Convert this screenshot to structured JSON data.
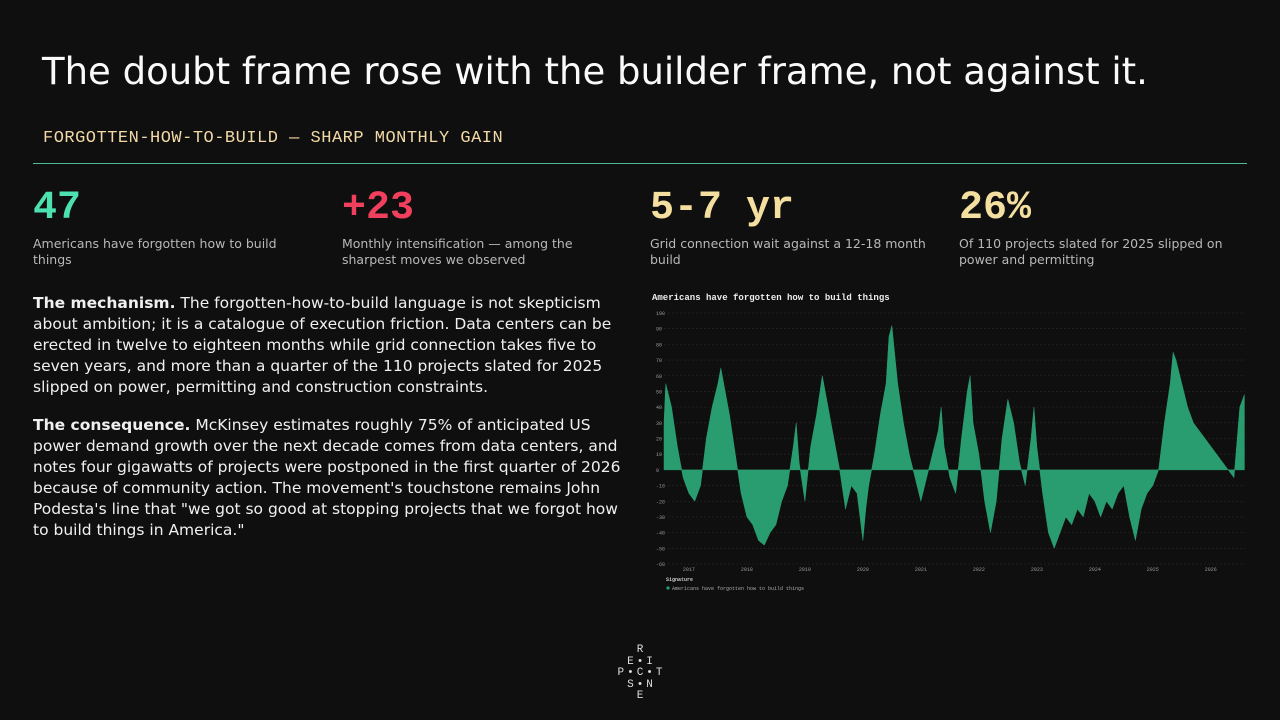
{
  "title": "The doubt frame rose with the builder frame, not against it.",
  "subtitle": "FORGOTTEN-HOW-TO-BUILD — SHARP MONTHLY GAIN",
  "stats": [
    {
      "value": "47",
      "caption": "Americans have forgotten how to build things"
    },
    {
      "value": "+23",
      "caption": "Monthly intensification — among the sharpest moves we observed"
    },
    {
      "value": "5-7 yr",
      "caption": "Grid connection wait against a 12-18 month build"
    },
    {
      "value": "26%",
      "caption": "Of 110 projects slated for 2025 slipped on power and permitting"
    }
  ],
  "paragraphs": [
    {
      "lead": "The mechanism.",
      "text": "The forgotten-how-to-build language is not skepticism about ambition; it is a catalogue of execution friction. Data centers can be erected in twelve to eighteen months while grid connection takes five to seven years, and more than a quarter of the 110 projects slated for 2025 slipped on power, permitting and construction constraints."
    },
    {
      "lead": "The consequence.",
      "text": "McKinsey estimates roughly 75% of anticipated US power demand growth over the next decade comes from data centers, and notes four gigawatts of projects were postponed in the first quarter of 2026 because of community action. The movement's touchstone remains John Podesta's line that \"we got so good at stopping projects that we forgot how to build things in America.\""
    }
  ],
  "logo": [
    [
      "R"
    ],
    [
      "E",
      "I"
    ],
    [
      "P",
      "C",
      "T"
    ],
    [
      "S",
      "N"
    ],
    [
      "E"
    ]
  ],
  "chart_data": {
    "type": "area",
    "title": "Americans have forgotten how to build things",
    "legend_title": "Signature",
    "series": [
      {
        "name": "Americans have forgotten how to build things",
        "color": "#2a9d70",
        "x": [
          2016.57,
          2016.6,
          2016.7,
          2016.8,
          2016.9,
          2017.0,
          2017.1,
          2017.2,
          2017.3,
          2017.4,
          2017.5,
          2017.55,
          2017.7,
          2017.8,
          2017.9,
          2018.0,
          2018.1,
          2018.2,
          2018.3,
          2018.4,
          2018.5,
          2018.6,
          2018.7,
          2018.8,
          2018.85,
          2018.9,
          2019.0,
          2019.1,
          2019.2,
          2019.3,
          2019.4,
          2019.5,
          2019.6,
          2019.7,
          2019.8,
          2019.9,
          2020.0,
          2020.05,
          2020.1,
          2020.2,
          2020.3,
          2020.4,
          2020.45,
          2020.5,
          2020.6,
          2020.7,
          2020.8,
          2020.9,
          2021.0,
          2021.1,
          2021.2,
          2021.3,
          2021.35,
          2021.4,
          2021.5,
          2021.6,
          2021.7,
          2021.8,
          2021.85,
          2021.9,
          2022.0,
          2022.1,
          2022.2,
          2022.3,
          2022.4,
          2022.5,
          2022.6,
          2022.7,
          2022.8,
          2022.9,
          2022.95,
          2023.0,
          2023.1,
          2023.2,
          2023.3,
          2023.4,
          2023.5,
          2023.6,
          2023.7,
          2023.8,
          2023.9,
          2024.0,
          2024.1,
          2024.2,
          2024.3,
          2024.4,
          2024.5,
          2024.6,
          2024.7,
          2024.8,
          2024.9,
          2025.0,
          2025.1,
          2025.2,
          2025.3,
          2025.35,
          2025.4,
          2025.5,
          2025.6,
          2025.7,
          2025.8,
          2025.9,
          2026.0,
          2026.1,
          2026.2,
          2026.3,
          2026.4,
          2026.5,
          2026.58
        ],
        "values": [
          30,
          55,
          40,
          15,
          -5,
          -15,
          -20,
          -10,
          20,
          40,
          55,
          65,
          35,
          10,
          -15,
          -30,
          -35,
          -45,
          -48,
          -40,
          -35,
          -20,
          -10,
          15,
          30,
          5,
          -20,
          15,
          35,
          60,
          40,
          20,
          0,
          -25,
          -10,
          -15,
          -45,
          -25,
          -10,
          10,
          35,
          55,
          85,
          92,
          55,
          30,
          10,
          -5,
          -20,
          -5,
          10,
          25,
          40,
          15,
          -5,
          -15,
          20,
          50,
          60,
          30,
          10,
          -20,
          -40,
          -20,
          20,
          45,
          30,
          5,
          -10,
          20,
          40,
          15,
          -15,
          -40,
          -50,
          -40,
          -30,
          -35,
          -25,
          -30,
          -15,
          -20,
          -30,
          -20,
          -25,
          -15,
          -10,
          -30,
          -45,
          -25,
          -15,
          -10,
          0,
          30,
          55,
          75,
          70,
          55,
          40,
          30,
          25,
          20,
          15,
          10,
          5,
          0,
          -5,
          40,
          48
        ]
      }
    ],
    "xlim": [
      2016.57,
      2026.59
    ],
    "xticks": [
      2017,
      2018,
      2019,
      2020,
      2021,
      2022,
      2023,
      2024,
      2025,
      2026
    ],
    "ylim": [
      -60,
      100
    ],
    "yticks": [
      100,
      90,
      80,
      70,
      60,
      50,
      40,
      30,
      20,
      10,
      0,
      -10,
      -20,
      -30,
      -40,
      -50,
      -60
    ],
    "grid": true
  }
}
